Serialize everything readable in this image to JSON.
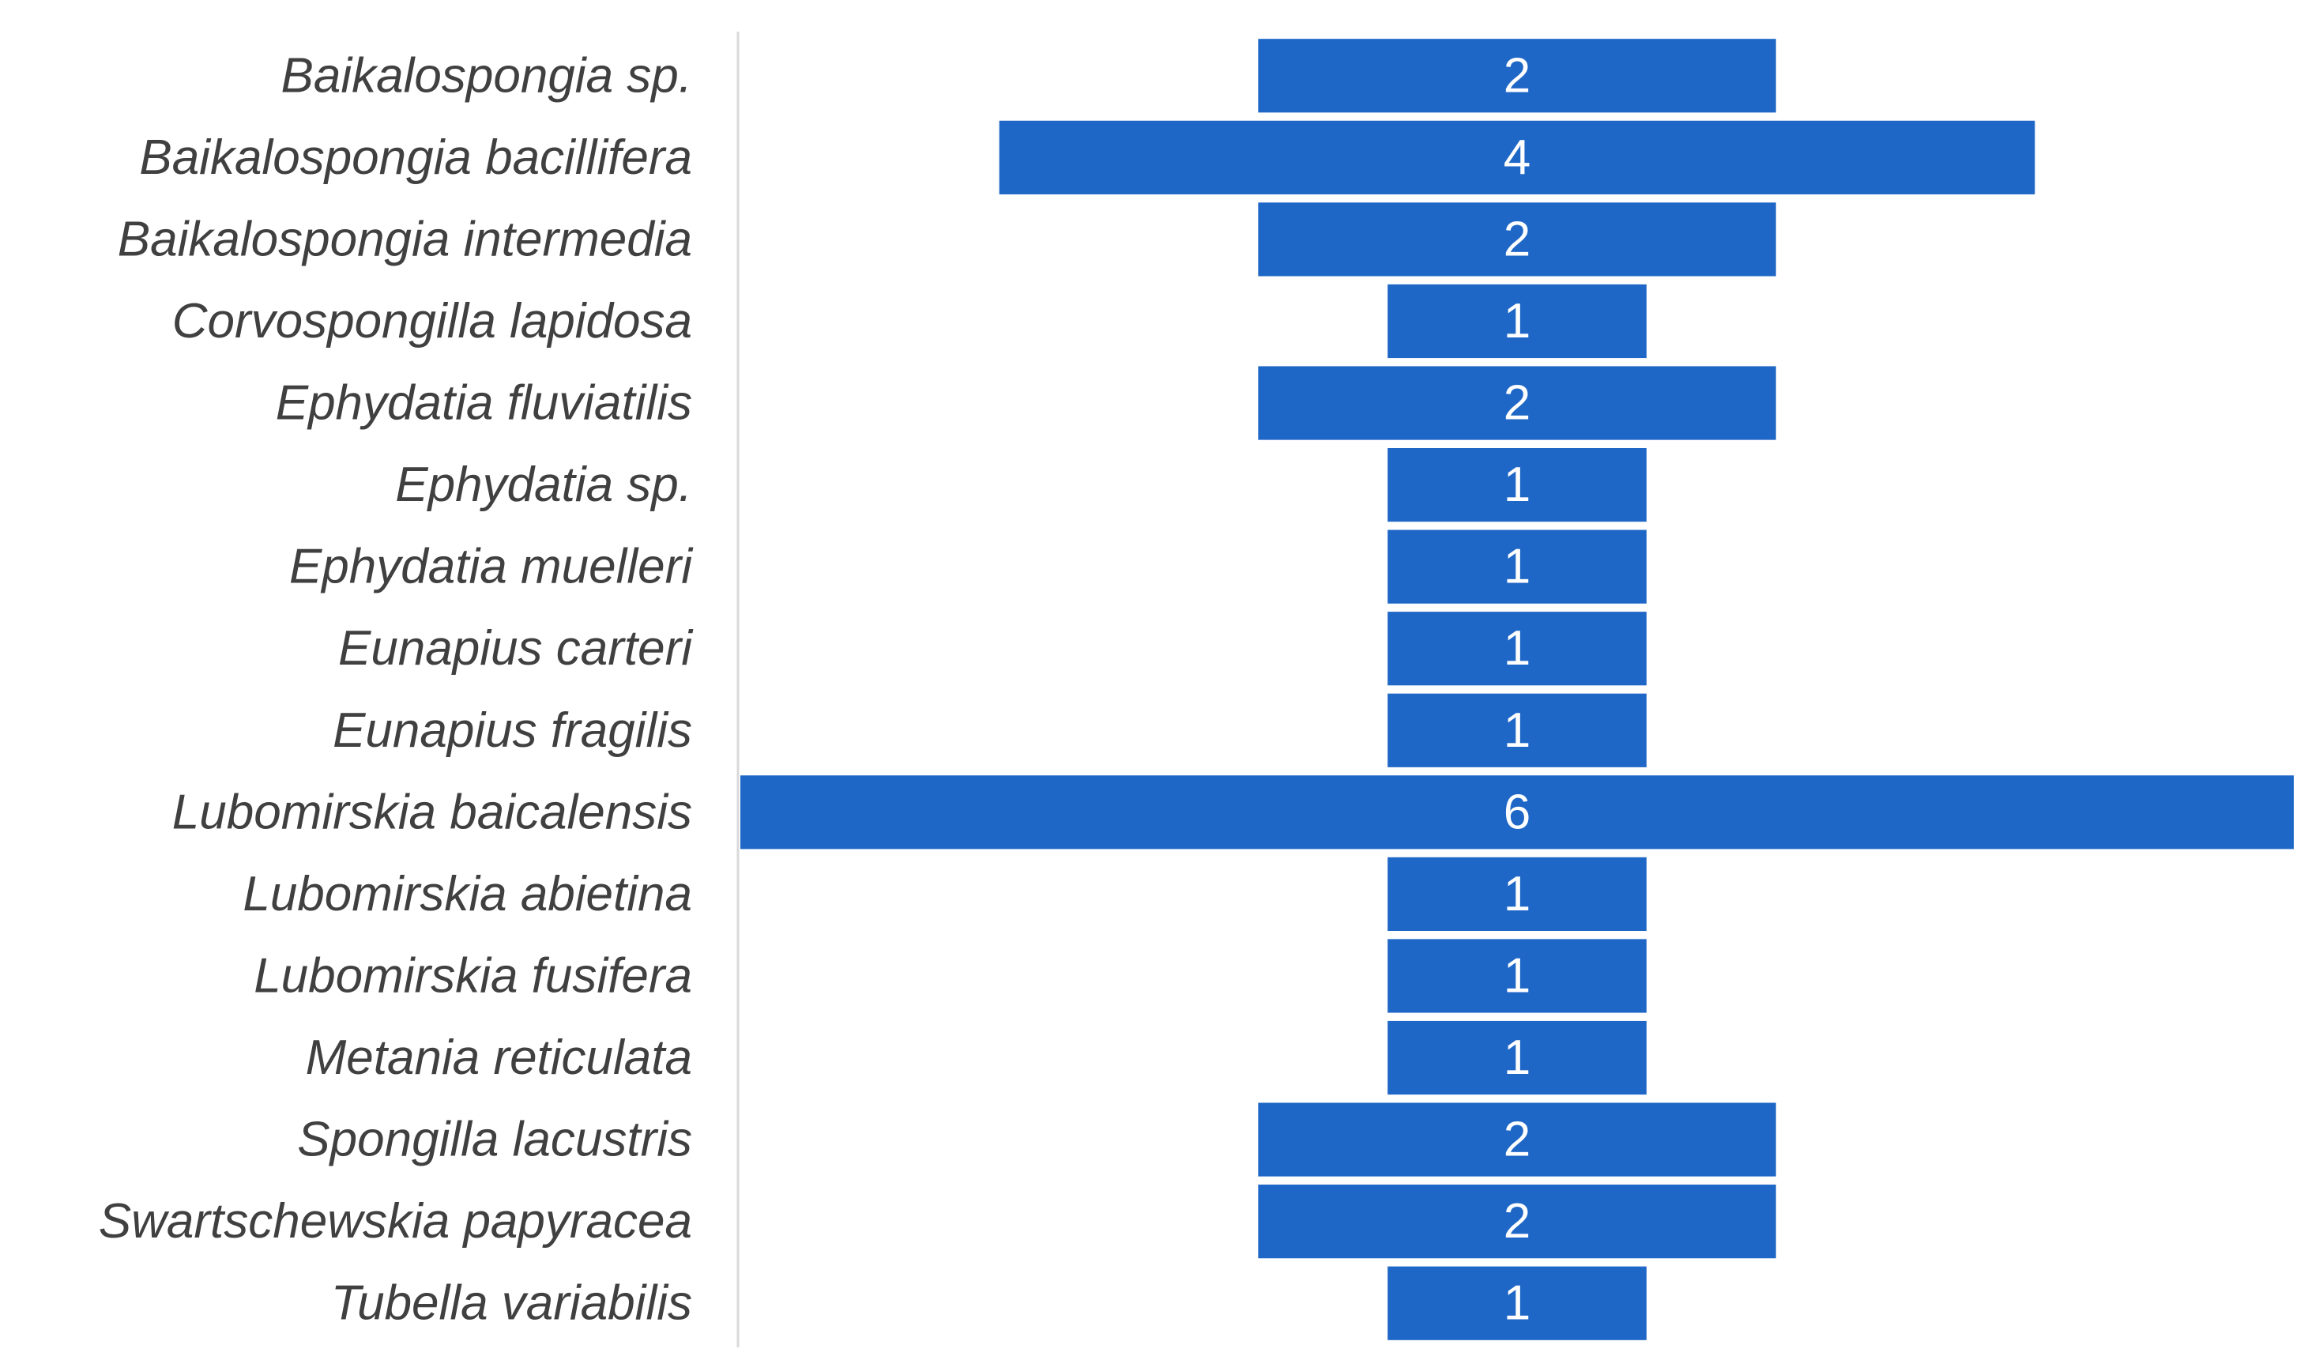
{
  "chart_data": {
    "type": "bar",
    "orientation": "horizontal",
    "layout": "centered",
    "bar_color": "#1F67C6",
    "axis_color": "#D9D9D9",
    "label_color": "#404040",
    "value_label_color": "#FFFFFF",
    "grid": false,
    "legend": "none",
    "xlim": [
      0,
      6
    ],
    "categories": [
      "Baikalospongia sp.",
      "Baikalospongia bacillifera",
      "Baikalospongia intermedia",
      "Corvospongilla lapidosa",
      "Ephydatia fluviatilis",
      "Ephydatia sp.",
      "Ephydatia muelleri",
      "Eunapius carteri",
      "Eunapius fragilis",
      "Lubomirskia baicalensis",
      "Lubomirskia abietina",
      "Lubomirskia fusifera",
      "Metania reticulata",
      "Spongilla lacustris",
      "Swartschewskia papyracea",
      "Tubella variabilis"
    ],
    "values": [
      2,
      4,
      2,
      1,
      2,
      1,
      1,
      1,
      1,
      6,
      1,
      1,
      1,
      2,
      2,
      1
    ],
    "data_labels": [
      "2",
      "4",
      "2",
      "1",
      "2",
      "1",
      "1",
      "1",
      "1",
      "6",
      "1",
      "1",
      "1",
      "2",
      "2",
      "1"
    ]
  }
}
